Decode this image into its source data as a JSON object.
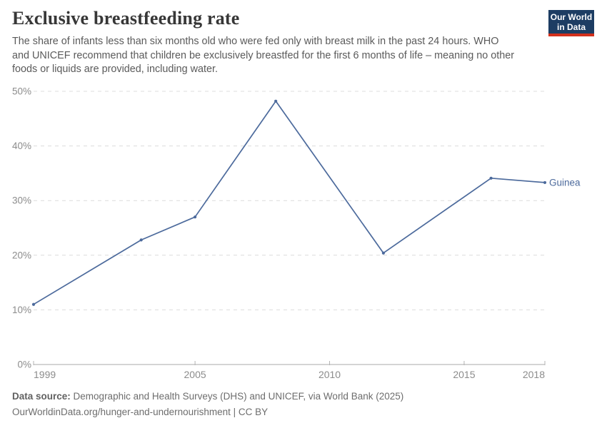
{
  "header": {
    "title": "Exclusive breastfeeding rate",
    "subtitle": "The share of infants less than six months old who were fed only with breast milk in the past 24 hours. WHO\nand UNICEF recommend that children be exclusively breastfed for the first 6 months of life – meaning no other\nfoods or liquids are provided, including water.",
    "logo_text": "Our World\nin Data",
    "logo_colors": {
      "background": "#1d3d63",
      "accent_bar": "#d2301c",
      "text": "#ffffff"
    }
  },
  "chart_data": {
    "type": "line",
    "title": "Exclusive breastfeeding rate",
    "x": [
      1999,
      2003,
      2005,
      2008,
      2012,
      2016,
      2018
    ],
    "series": [
      {
        "name": "Guinea",
        "color": "#4C6A9C",
        "values": [
          11.0,
          22.8,
          27.0,
          48.2,
          20.4,
          34.1,
          33.3
        ]
      }
    ],
    "end_label": "Guinea",
    "xlabel": "",
    "ylabel": "",
    "xlim": [
      1999,
      2018
    ],
    "ylim": [
      0,
      50
    ],
    "x_ticks": [
      1999,
      2005,
      2010,
      2015,
      2018
    ],
    "y_ticks": [
      0,
      10,
      20,
      30,
      40,
      50
    ],
    "y_tick_suffix": "%",
    "grid": "horizontal-dashed",
    "legend_position": "end-of-line",
    "colors": {
      "gridline": "#dcdcdc",
      "axis_line": "#a9a9a9",
      "tick_mark": "#b3b3b3",
      "tick_label": "#8c8c8c"
    }
  },
  "footer": {
    "datasource_label": "Data source:",
    "datasource_text": "Demographic and Health Surveys (DHS) and UNICEF, via World Bank (2025)",
    "url_line": "OurWorldinData.org/hunger-and-undernourishment | CC BY"
  }
}
